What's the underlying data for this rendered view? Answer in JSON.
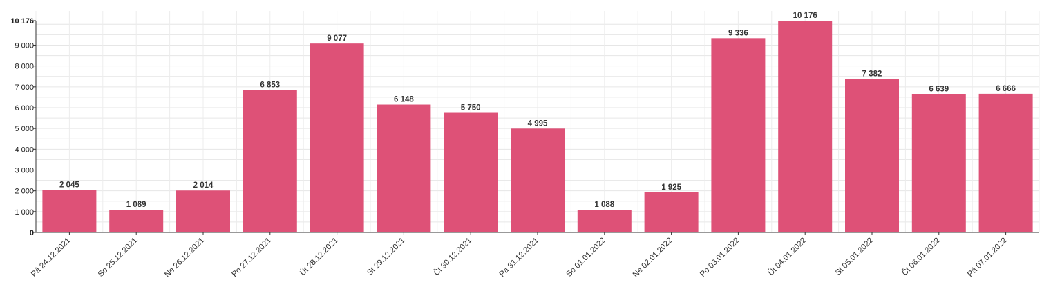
{
  "chart_data": {
    "type": "bar",
    "categories": [
      "Pá 24.12.2021",
      "So 25.12.2021",
      "Ne 26.12.2021",
      "Po 27.12.2021",
      "Út 28.12.2021",
      "St 29.12.2021",
      "Čt 30.12.2021",
      "Pá 31.12.2021",
      "So 01.01.2022",
      "Ne 02.01.2022",
      "Po 03.01.2022",
      "Út 04.01.2022",
      "St 05.01.2022",
      "Čt 06.01.2022",
      "Pá 07.01.2022"
    ],
    "values": [
      2045,
      1089,
      2014,
      6853,
      9077,
      6148,
      5750,
      4995,
      1088,
      1925,
      9336,
      10176,
      7382,
      6639,
      6666
    ],
    "value_labels": [
      "2 045",
      "1 089",
      "2 014",
      "6 853",
      "9 077",
      "6 148",
      "5 750",
      "4 995",
      "1 088",
      "1 925",
      "9 336",
      "10 176",
      "7 382",
      "6 639",
      "6 666"
    ],
    "y_ticks": [
      0,
      1000,
      2000,
      3000,
      4000,
      5000,
      6000,
      7000,
      8000,
      9000,
      10176
    ],
    "y_tick_labels": [
      "0",
      "1 000",
      "2 000",
      "3 000",
      "4 000",
      "5 000",
      "6 000",
      "7 000",
      "8 000",
      "9 000",
      "10 176"
    ],
    "ylim": [
      0,
      10176
    ],
    "grid": true,
    "bar_color": "#dd4b73",
    "title": "",
    "xlabel": "",
    "ylabel": ""
  }
}
